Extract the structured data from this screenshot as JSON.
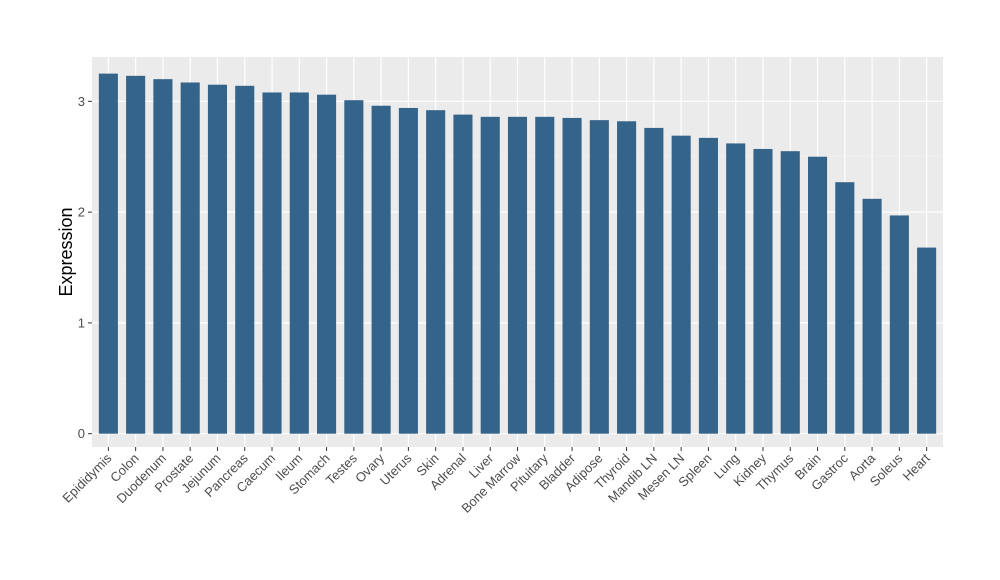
{
  "chart_data": {
    "type": "bar",
    "title": "",
    "xlabel": "",
    "ylabel": "Expression",
    "ylim": [
      -0.12,
      3.4
    ],
    "yticks": [
      0,
      1,
      2,
      3
    ],
    "grid": true,
    "legend": "none",
    "colors": {
      "bar": "#35648b",
      "panel": "#ebebeb",
      "grid_major": "#ffffff",
      "grid_minor": "#f4f4f4",
      "tick_text": "#4d4d4d",
      "axis_title": "#000000"
    },
    "categories": [
      "Epididymis",
      "Colon",
      "Duodenum",
      "Prostate",
      "Jejunum",
      "Pancreas",
      "Caecum",
      "Ileum",
      "Stomach",
      "Testes",
      "Ovary",
      "Uterus",
      "Skin",
      "Adrenal",
      "Liver",
      "Bone Marrow",
      "Pituitary",
      "Bladder",
      "Adipose",
      "Thyroid",
      "Mandib LN",
      "Mesen LN",
      "Spleen",
      "Lung",
      "Kidney",
      "Thymus",
      "Brain",
      "Gastroc",
      "Aorta",
      "Soleus",
      "Heart"
    ],
    "values": [
      3.25,
      3.23,
      3.2,
      3.17,
      3.15,
      3.14,
      3.08,
      3.08,
      3.06,
      3.01,
      2.96,
      2.94,
      2.92,
      2.88,
      2.86,
      2.86,
      2.86,
      2.85,
      2.83,
      2.82,
      2.76,
      2.69,
      2.67,
      2.62,
      2.57,
      2.55,
      2.5,
      2.27,
      2.12,
      1.97,
      1.68
    ]
  }
}
